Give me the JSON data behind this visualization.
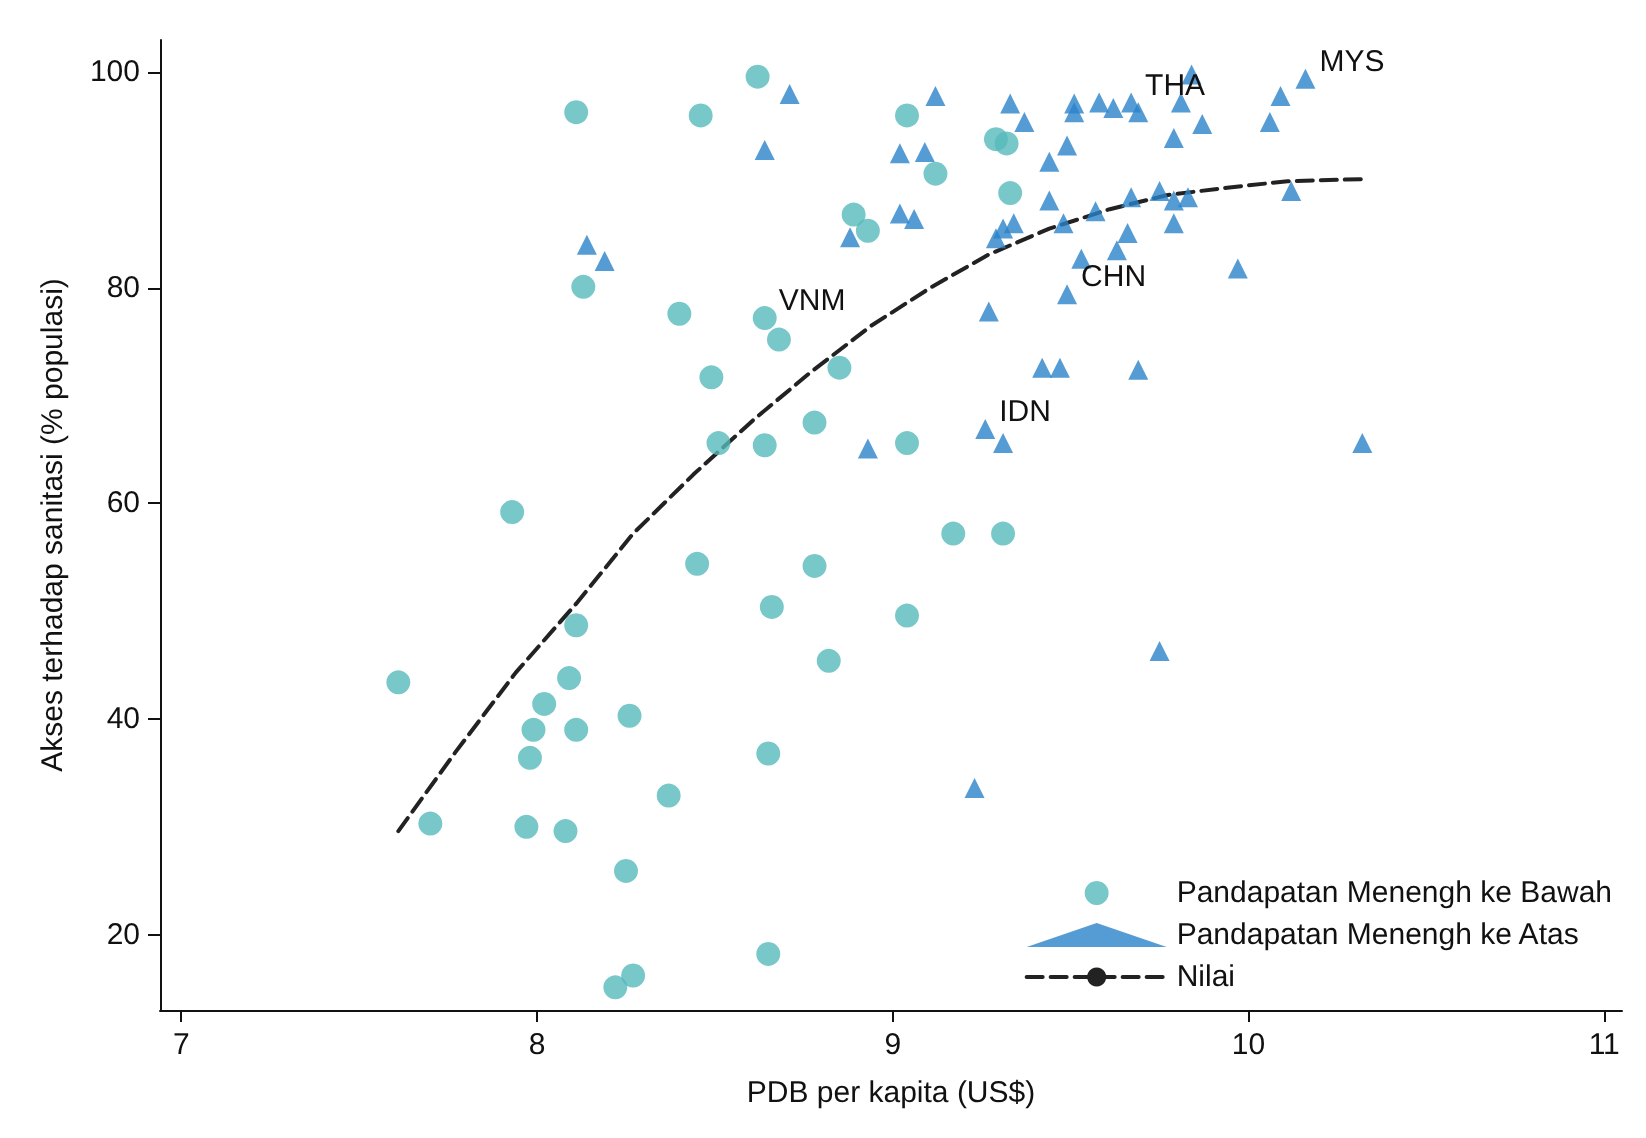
{
  "chart_data": {
    "type": "scatter",
    "xlabel": "PDB per kapita (US$)",
    "ylabel": "Akses terhadap sanitasi (% populasi)",
    "xlim": [
      6.94,
      11.05
    ],
    "ylim": [
      13,
      103
    ],
    "xticks": [
      7,
      8,
      9,
      10,
      11
    ],
    "yticks": [
      20,
      40,
      60,
      80,
      100
    ],
    "grid": false,
    "legend": "bottom right",
    "series": [
      {
        "name": "Pandapatan Menengh ke Bawah",
        "color": "#56b9bb",
        "marker": "circle",
        "x": [
          8.62,
          8.11,
          8.46,
          9.04,
          8.89,
          8.93,
          8.13,
          8.4,
          8.64,
          8.68,
          8.85,
          8.49,
          8.78,
          8.51,
          8.64,
          9.04,
          7.93,
          8.45,
          8.78,
          8.66,
          9.04,
          8.11,
          8.82,
          7.61,
          8.09,
          8.02,
          7.99,
          8.11,
          8.26,
          7.98,
          8.65,
          8.37,
          7.7,
          7.97,
          8.08,
          8.25,
          8.65,
          8.27,
          8.22,
          9.29,
          9.32,
          9.12,
          9.33,
          9.17,
          9.31
        ],
        "values": [
          99.6,
          96.3,
          96.0,
          96.0,
          86.8,
          85.3,
          80.1,
          77.6,
          77.2,
          75.2,
          72.6,
          71.7,
          67.5,
          65.6,
          65.4,
          65.6,
          59.2,
          54.4,
          54.2,
          50.4,
          49.6,
          48.7,
          45.4,
          43.4,
          43.8,
          41.4,
          39.0,
          39.0,
          40.3,
          36.4,
          36.8,
          32.9,
          30.3,
          30.0,
          29.6,
          25.9,
          18.2,
          16.2,
          15.1,
          93.8,
          93.4,
          90.6,
          88.8,
          57.2,
          57.2
        ]
      },
      {
        "name": "Pandapatan Menengh ke Atas",
        "color": "#2a82c9",
        "marker": "triangle",
        "x": [
          8.71,
          8.64,
          9.02,
          9.02,
          8.14,
          8.19,
          8.88,
          8.93,
          9.12,
          9.09,
          9.33,
          9.37,
          9.51,
          9.51,
          9.58,
          9.62,
          9.67,
          9.69,
          9.84,
          9.81,
          9.87,
          9.79,
          10.09,
          10.16,
          10.06,
          9.49,
          9.44,
          9.06,
          9.44,
          9.34,
          9.31,
          9.29,
          9.48,
          9.57,
          9.67,
          9.75,
          9.79,
          9.83,
          9.79,
          10.12,
          9.66,
          9.63,
          9.53,
          9.97,
          9.49,
          9.27,
          9.42,
          9.47,
          9.69,
          9.26,
          9.31,
          10.32,
          9.75,
          9.23
        ],
        "values": [
          98.0,
          92.8,
          92.5,
          86.9,
          84.0,
          82.5,
          84.7,
          65.1,
          97.8,
          92.6,
          97.1,
          95.4,
          97.1,
          96.3,
          97.2,
          96.7,
          97.2,
          96.3,
          99.8,
          97.2,
          95.2,
          93.9,
          97.8,
          99.4,
          95.4,
          93.2,
          91.7,
          86.4,
          88.1,
          86.0,
          85.5,
          84.6,
          86.0,
          87.1,
          88.4,
          89.0,
          88.1,
          88.4,
          86.0,
          89.0,
          85.1,
          83.5,
          82.7,
          81.8,
          79.4,
          77.8,
          72.6,
          72.6,
          72.4,
          66.9,
          65.6,
          65.6,
          46.3,
          33.6
        ]
      },
      {
        "name": "Nilai",
        "type": "line",
        "color": "#222222",
        "marker": "none",
        "line_style": "dashed",
        "x": [
          7.61,
          7.77,
          7.94,
          8.11,
          8.27,
          8.44,
          8.61,
          8.77,
          8.94,
          9.11,
          9.27,
          9.44,
          9.61,
          9.77,
          9.94,
          10.11,
          10.33
        ],
        "values": [
          29.6,
          36.9,
          44.3,
          50.7,
          57.2,
          62.7,
          67.8,
          72.2,
          76.5,
          80.1,
          83.1,
          85.5,
          87.3,
          88.6,
          89.3,
          89.9,
          90.1
        ]
      }
    ],
    "annotations": [
      {
        "text": "VNM",
        "x": 8.64,
        "y": 77.2
      },
      {
        "text": "THA",
        "x": 9.67,
        "y": 97.2
      },
      {
        "text": "MYS",
        "x": 10.16,
        "y": 99.4
      },
      {
        "text": "CHN",
        "x": 9.49,
        "y": 79.4
      },
      {
        "text": "IDN",
        "x": 9.26,
        "y": 66.9
      }
    ]
  }
}
